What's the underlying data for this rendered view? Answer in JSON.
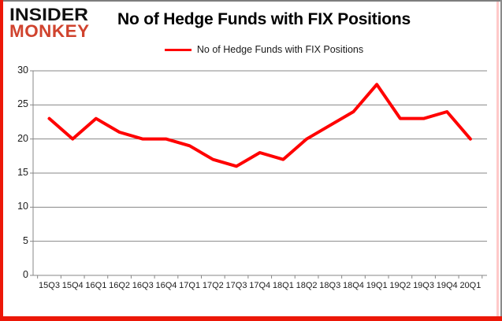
{
  "logo": {
    "line1": "INSIDER",
    "line2": "MONKEY"
  },
  "header": {
    "title": "No of Hedge Funds with FIX Positions"
  },
  "legend": {
    "label": "No of Hedge Funds with FIX Positions"
  },
  "colors": {
    "line": "#ff0000",
    "logo_red": "#d0432e",
    "frame_red": "#ec1708",
    "frame_gray": "#7d7d7d",
    "pink_edge": "#ffc9c9",
    "grid": "#878787",
    "axis_text": "#1c1c1c"
  },
  "chart_data": {
    "type": "line",
    "title": "No of Hedge Funds with FIX Positions",
    "categories": [
      "15Q3",
      "15Q4",
      "16Q1",
      "16Q2",
      "16Q3",
      "16Q4",
      "17Q1",
      "17Q2",
      "17Q3",
      "17Q4",
      "18Q1",
      "18Q2",
      "18Q3",
      "18Q4",
      "19Q1",
      "19Q2",
      "19Q3",
      "19Q4",
      "20Q1"
    ],
    "values": [
      23,
      20,
      23,
      21,
      20,
      20,
      19,
      17,
      16,
      18,
      17,
      20,
      22,
      24,
      28,
      23,
      23,
      24,
      20
    ],
    "series": [
      {
        "name": "No of Hedge Funds with FIX Positions",
        "color": "#ff0000",
        "values": [
          23,
          20,
          23,
          21,
          20,
          20,
          19,
          17,
          16,
          18,
          17,
          20,
          22,
          24,
          28,
          23,
          23,
          24,
          20
        ]
      }
    ],
    "xlabel": "",
    "ylabel": "",
    "ylim": [
      0,
      30
    ],
    "yticks": [
      0,
      5,
      10,
      15,
      20,
      25,
      30
    ],
    "grid": true,
    "legend_position": "top-center"
  }
}
